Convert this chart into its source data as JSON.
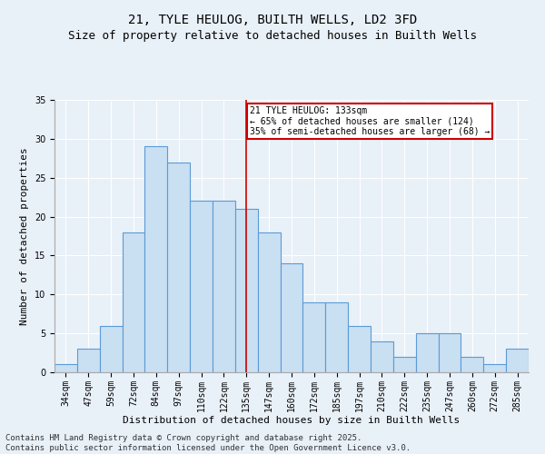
{
  "title1": "21, TYLE HEULOG, BUILTH WELLS, LD2 3FD",
  "title2": "Size of property relative to detached houses in Builth Wells",
  "xlabel": "Distribution of detached houses by size in Builth Wells",
  "ylabel": "Number of detached properties",
  "categories": [
    "34sqm",
    "47sqm",
    "59sqm",
    "72sqm",
    "84sqm",
    "97sqm",
    "110sqm",
    "122sqm",
    "135sqm",
    "147sqm",
    "160sqm",
    "172sqm",
    "185sqm",
    "197sqm",
    "210sqm",
    "222sqm",
    "235sqm",
    "247sqm",
    "260sqm",
    "272sqm",
    "285sqm"
  ],
  "values": [
    1,
    3,
    6,
    18,
    29,
    27,
    22,
    22,
    21,
    18,
    14,
    9,
    9,
    6,
    4,
    2,
    5,
    5,
    2,
    1,
    3
  ],
  "bar_color": "#c9dff2",
  "bar_edge_color": "#5b9bd5",
  "vline_index": 8,
  "annotation_text": "21 TYLE HEULOG: 133sqm\n← 65% of detached houses are smaller (124)\n35% of semi-detached houses are larger (68) →",
  "annotation_box_color": "#ffffff",
  "annotation_box_edge": "#cc0000",
  "vline_color": "#cc0000",
  "ylim": [
    0,
    35
  ],
  "yticks": [
    0,
    5,
    10,
    15,
    20,
    25,
    30,
    35
  ],
  "background_color": "#e8f0f8",
  "footnote": "Contains HM Land Registry data © Crown copyright and database right 2025.\nContains public sector information licensed under the Open Government Licence v3.0.",
  "title_fontsize": 10,
  "subtitle_fontsize": 9,
  "axis_label_fontsize": 8,
  "tick_fontsize": 7,
  "annotation_fontsize": 7,
  "footnote_fontsize": 6.5
}
